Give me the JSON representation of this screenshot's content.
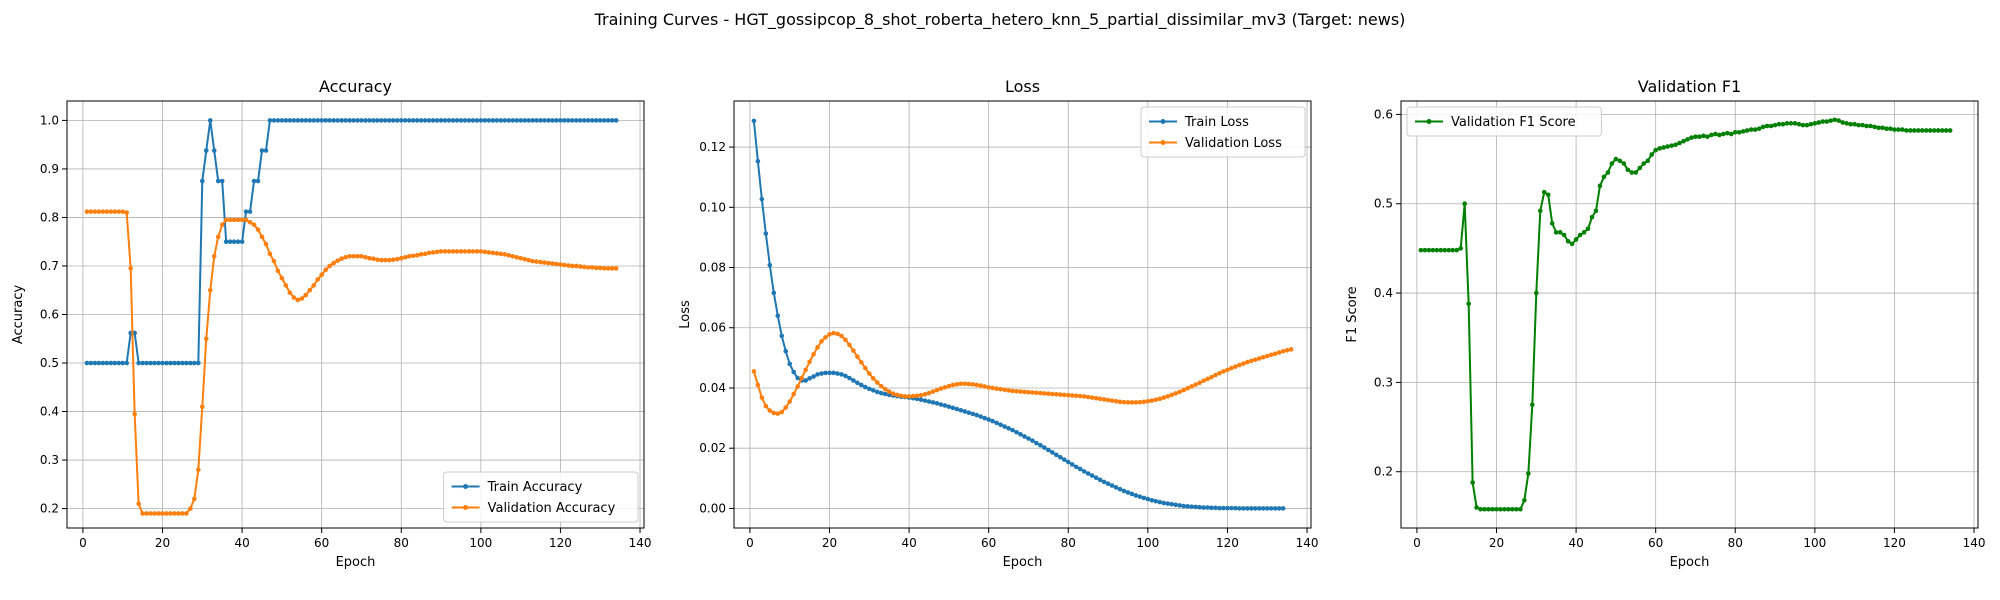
{
  "figure": {
    "suptitle": "Training Curves - HGT_gossipcop_8_shot_roberta_hetero_knn_5_partial_dissimilar_mv3 (Target: news)"
  },
  "colors": {
    "blue": "#1f77b4",
    "orange": "#ff7f0e",
    "green": "#008000",
    "grid": "#b0b0b0",
    "axes": "#000000"
  },
  "chart_data": [
    {
      "type": "line",
      "title": "Accuracy",
      "xlabel": "Epoch",
      "ylabel": "Accuracy",
      "xlim": [
        -4,
        141
      ],
      "ylim": [
        0.16,
        1.04
      ],
      "xticks": [
        0,
        20,
        40,
        60,
        80,
        100,
        120,
        140
      ],
      "yticks": [
        0.2,
        0.3,
        0.4,
        0.5,
        0.6,
        0.7,
        0.8,
        0.9,
        1.0
      ],
      "ytick_labels": [
        "0.2",
        "0.3",
        "0.4",
        "0.5",
        "0.6",
        "0.7",
        "0.8",
        "0.9",
        "1.0"
      ],
      "grid": true,
      "legend_loc": "lower-right",
      "series": [
        {
          "name": "Train Accuracy",
          "color": "blue",
          "x_start": 1,
          "values": [
            0.5,
            0.5,
            0.5,
            0.5,
            0.5,
            0.5,
            0.5,
            0.5,
            0.5,
            0.5,
            0.5,
            0.562,
            0.562,
            0.5,
            0.5,
            0.5,
            0.5,
            0.5,
            0.5,
            0.5,
            0.5,
            0.5,
            0.5,
            0.5,
            0.5,
            0.5,
            0.5,
            0.5,
            0.5,
            0.875,
            0.938,
            1.0,
            0.938,
            0.875,
            0.875,
            0.75,
            0.75,
            0.75,
            0.75,
            0.75,
            0.812,
            0.812,
            0.875,
            0.875,
            0.938,
            0.938,
            1.0,
            1.0,
            1.0,
            1.0,
            1.0,
            1.0,
            1.0,
            1.0,
            1.0,
            1.0,
            1.0,
            1.0,
            1.0,
            1.0,
            1.0,
            1.0,
            1.0,
            1.0,
            1.0,
            1.0,
            1.0,
            1.0,
            1.0,
            1.0,
            1.0,
            1.0,
            1.0,
            1.0,
            1.0,
            1.0,
            1.0,
            1.0,
            1.0,
            1.0,
            1.0,
            1.0,
            1.0,
            1.0,
            1.0,
            1.0,
            1.0,
            1.0,
            1.0,
            1.0,
            1.0,
            1.0,
            1.0,
            1.0,
            1.0,
            1.0,
            1.0,
            1.0,
            1.0,
            1.0,
            1.0,
            1.0,
            1.0,
            1.0,
            1.0,
            1.0,
            1.0,
            1.0,
            1.0,
            1.0,
            1.0,
            1.0,
            1.0,
            1.0,
            1.0,
            1.0,
            1.0,
            1.0,
            1.0,
            1.0,
            1.0,
            1.0,
            1.0,
            1.0,
            1.0,
            1.0,
            1.0,
            1.0,
            1.0,
            1.0,
            1.0,
            1.0,
            1.0,
            1.0
          ]
        },
        {
          "name": "Validation Accuracy",
          "color": "orange",
          "x_start": 1,
          "values": [
            0.812,
            0.812,
            0.812,
            0.812,
            0.812,
            0.812,
            0.812,
            0.812,
            0.812,
            0.812,
            0.81,
            0.695,
            0.395,
            0.21,
            0.19,
            0.19,
            0.19,
            0.19,
            0.19,
            0.19,
            0.19,
            0.19,
            0.19,
            0.19,
            0.19,
            0.19,
            0.2,
            0.22,
            0.28,
            0.41,
            0.55,
            0.65,
            0.72,
            0.76,
            0.785,
            0.795,
            0.795,
            0.795,
            0.795,
            0.795,
            0.795,
            0.79,
            0.785,
            0.775,
            0.76,
            0.745,
            0.725,
            0.71,
            0.69,
            0.675,
            0.66,
            0.645,
            0.635,
            0.63,
            0.633,
            0.64,
            0.65,
            0.66,
            0.672,
            0.682,
            0.692,
            0.7,
            0.706,
            0.711,
            0.715,
            0.718,
            0.72,
            0.72,
            0.72,
            0.72,
            0.718,
            0.716,
            0.715,
            0.713,
            0.712,
            0.712,
            0.712,
            0.713,
            0.714,
            0.716,
            0.718,
            0.72,
            0.721,
            0.722,
            0.724,
            0.725,
            0.727,
            0.728,
            0.729,
            0.73,
            0.73,
            0.73,
            0.73,
            0.73,
            0.73,
            0.73,
            0.73,
            0.73,
            0.73,
            0.73,
            0.729,
            0.728,
            0.727,
            0.726,
            0.725,
            0.724,
            0.722,
            0.72,
            0.718,
            0.716,
            0.714,
            0.712,
            0.71,
            0.709,
            0.708,
            0.707,
            0.706,
            0.705,
            0.704,
            0.703,
            0.702,
            0.701,
            0.7,
            0.7,
            0.699,
            0.698,
            0.697,
            0.697,
            0.696,
            0.696,
            0.695,
            0.695,
            0.695,
            0.695
          ]
        }
      ]
    },
    {
      "type": "line",
      "title": "Loss",
      "xlabel": "Epoch",
      "ylabel": "Loss",
      "xlim": [
        -4,
        141
      ],
      "ylim": [
        -0.0065,
        0.1353
      ],
      "xticks": [
        0,
        20,
        40,
        60,
        80,
        100,
        120,
        140
      ],
      "yticks": [
        0.0,
        0.02,
        0.04,
        0.06,
        0.08,
        0.1,
        0.12
      ],
      "ytick_labels": [
        "0.00",
        "0.02",
        "0.04",
        "0.06",
        "0.08",
        "0.10",
        "0.12"
      ],
      "grid": true,
      "legend_loc": "upper-right",
      "series": [
        {
          "name": "Train Loss",
          "color": "blue",
          "x_start": 1,
          "values": [
            0.1287,
            0.1153,
            0.1027,
            0.0913,
            0.0808,
            0.0716,
            0.064,
            0.0573,
            0.0522,
            0.048,
            0.0453,
            0.0433,
            0.0425,
            0.0425,
            0.0432,
            0.0438,
            0.0445,
            0.0448,
            0.045,
            0.045,
            0.045,
            0.0448,
            0.0445,
            0.044,
            0.0433,
            0.0425,
            0.0417,
            0.041,
            0.0403,
            0.0397,
            0.0392,
            0.0387,
            0.0383,
            0.038,
            0.0377,
            0.0375,
            0.0373,
            0.0371,
            0.037,
            0.0368,
            0.0366,
            0.0364,
            0.0361,
            0.0358,
            0.0355,
            0.0352,
            0.0349,
            0.0345,
            0.0342,
            0.0338,
            0.0334,
            0.033,
            0.0326,
            0.0322,
            0.0318,
            0.0314,
            0.031,
            0.0305,
            0.03,
            0.0295,
            0.029,
            0.0284,
            0.0278,
            0.0272,
            0.0266,
            0.026,
            0.0253,
            0.0246,
            0.0239,
            0.0232,
            0.0225,
            0.0217,
            0.021,
            0.0202,
            0.0194,
            0.0186,
            0.0178,
            0.017,
            0.0162,
            0.0154,
            0.0146,
            0.0138,
            0.0131,
            0.0123,
            0.0116,
            0.0109,
            0.0102,
            0.0095,
            0.0088,
            0.0082,
            0.0076,
            0.007,
            0.0064,
            0.0058,
            0.0053,
            0.0048,
            0.0043,
            0.0039,
            0.0035,
            0.0031,
            0.0027,
            0.0024,
            0.0021,
            0.0018,
            0.0016,
            0.0014,
            0.0012,
            0.001,
            0.0008,
            0.0007,
            0.0006,
            0.0005,
            0.0004,
            0.0003,
            0.0003,
            0.0002,
            0.0002,
            0.0001,
            0.0001,
            0.0001,
            0.0001,
            0.0001,
            0.0,
            0.0,
            0.0,
            0.0,
            0.0,
            0.0,
            0.0,
            0.0,
            0.0,
            0.0,
            0.0,
            0.0
          ]
        },
        {
          "name": "Validation Loss",
          "color": "orange",
          "x_start": 1,
          "values": [
            0.0455,
            0.041,
            0.0368,
            0.034,
            0.0325,
            0.0317,
            0.0315,
            0.032,
            0.0335,
            0.0355,
            0.038,
            0.0405,
            0.0433,
            0.046,
            0.0487,
            0.0512,
            0.0535,
            0.0555,
            0.0568,
            0.0578,
            0.0582,
            0.058,
            0.0573,
            0.056,
            0.0543,
            0.0524,
            0.0504,
            0.0485,
            0.0466,
            0.0448,
            0.0432,
            0.0418,
            0.0406,
            0.0396,
            0.0388,
            0.0381,
            0.0377,
            0.0374,
            0.0372,
            0.0372,
            0.0373,
            0.0374,
            0.0376,
            0.0379,
            0.0383,
            0.0388,
            0.0393,
            0.0398,
            0.0402,
            0.0406,
            0.041,
            0.0412,
            0.0414,
            0.0414,
            0.0413,
            0.0412,
            0.041,
            0.0408,
            0.0405,
            0.0402,
            0.04,
            0.0398,
            0.0396,
            0.0394,
            0.0392,
            0.039,
            0.0389,
            0.0388,
            0.0387,
            0.0386,
            0.0385,
            0.0384,
            0.0383,
            0.0382,
            0.0381,
            0.038,
            0.0379,
            0.0378,
            0.0377,
            0.0376,
            0.0375,
            0.0374,
            0.0373,
            0.0372,
            0.037,
            0.0368,
            0.0366,
            0.0364,
            0.0362,
            0.036,
            0.0358,
            0.0356,
            0.0354,
            0.0353,
            0.0352,
            0.0352,
            0.0352,
            0.0353,
            0.0354,
            0.0356,
            0.0358,
            0.0361,
            0.0364,
            0.0368,
            0.0372,
            0.0377,
            0.0382,
            0.0387,
            0.0393,
            0.0399,
            0.0405,
            0.0411,
            0.0417,
            0.0424,
            0.043,
            0.0436,
            0.0443,
            0.0449,
            0.0455,
            0.046,
            0.0466,
            0.0471,
            0.0476,
            0.0481,
            0.0486,
            0.049,
            0.0494,
            0.0498,
            0.0502,
            0.0506,
            0.051,
            0.0514,
            0.0518,
            0.0522,
            0.0525,
            0.0528
          ]
        }
      ]
    },
    {
      "type": "line",
      "title": "Validation F1",
      "xlabel": "Epoch",
      "ylabel": "F1 Score",
      "xlim": [
        -4,
        141
      ],
      "ylim": [
        0.137,
        0.615
      ],
      "xticks": [
        0,
        20,
        40,
        60,
        80,
        100,
        120,
        140
      ],
      "yticks": [
        0.2,
        0.3,
        0.4,
        0.5,
        0.6
      ],
      "ytick_labels": [
        "0.2",
        "0.3",
        "0.4",
        "0.5",
        "0.6"
      ],
      "grid": true,
      "legend_loc": "upper-left",
      "series": [
        {
          "name": "Validation F1 Score",
          "color": "green",
          "x_start": 1,
          "values": [
            0.448,
            0.448,
            0.448,
            0.448,
            0.448,
            0.448,
            0.448,
            0.448,
            0.448,
            0.448,
            0.45,
            0.5,
            0.388,
            0.188,
            0.16,
            0.158,
            0.158,
            0.158,
            0.158,
            0.158,
            0.158,
            0.158,
            0.158,
            0.158,
            0.158,
            0.158,
            0.168,
            0.198,
            0.275,
            0.4,
            0.492,
            0.513,
            0.51,
            0.478,
            0.468,
            0.468,
            0.465,
            0.458,
            0.455,
            0.46,
            0.465,
            0.468,
            0.472,
            0.485,
            0.492,
            0.52,
            0.53,
            0.535,
            0.545,
            0.55,
            0.548,
            0.545,
            0.538,
            0.535,
            0.535,
            0.54,
            0.545,
            0.548,
            0.555,
            0.56,
            0.562,
            0.563,
            0.564,
            0.565,
            0.566,
            0.568,
            0.57,
            0.572,
            0.574,
            0.575,
            0.575,
            0.576,
            0.575,
            0.577,
            0.578,
            0.577,
            0.578,
            0.579,
            0.578,
            0.58,
            0.58,
            0.581,
            0.582,
            0.583,
            0.583,
            0.584,
            0.586,
            0.587,
            0.587,
            0.588,
            0.589,
            0.589,
            0.59,
            0.59,
            0.59,
            0.589,
            0.588,
            0.588,
            0.589,
            0.59,
            0.591,
            0.592,
            0.592,
            0.593,
            0.594,
            0.593,
            0.591,
            0.59,
            0.589,
            0.589,
            0.588,
            0.588,
            0.587,
            0.587,
            0.586,
            0.585,
            0.585,
            0.584,
            0.584,
            0.583,
            0.583,
            0.583,
            0.582,
            0.582,
            0.582,
            0.582,
            0.582,
            0.582,
            0.582,
            0.582,
            0.582,
            0.582,
            0.582,
            0.582
          ]
        }
      ]
    }
  ]
}
